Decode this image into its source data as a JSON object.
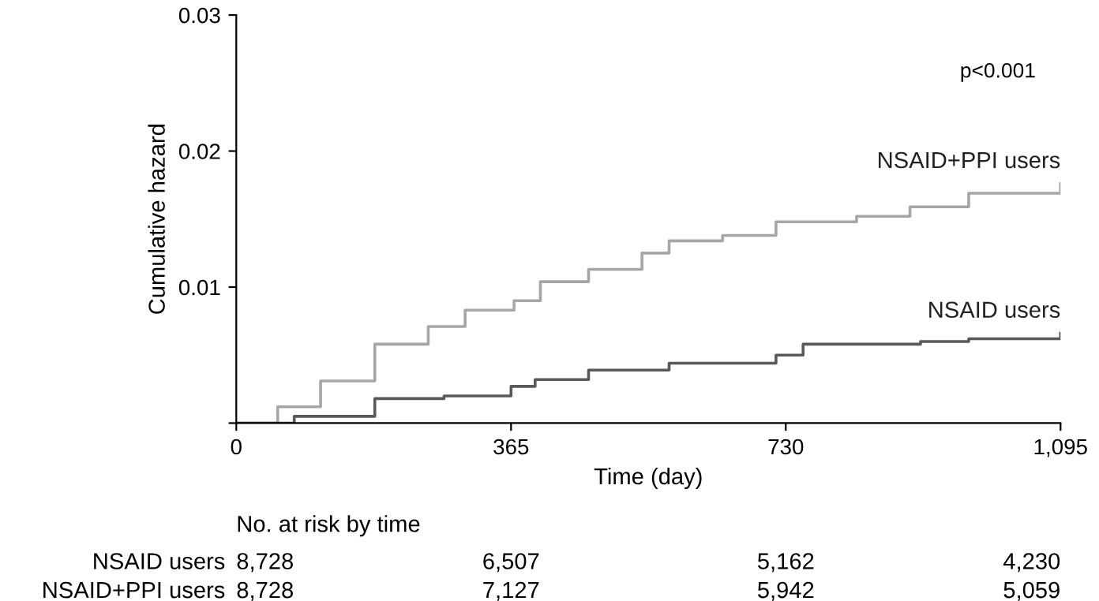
{
  "chart_data": {
    "type": "step",
    "xlabel": "Time (day)",
    "ylabel": "Cumulative hazard",
    "xlim": [
      0,
      1095
    ],
    "xticks": [
      0,
      365,
      730,
      {
        "value": 1095,
        "label": "1,095"
      }
    ],
    "ylim": [
      0,
      0.03
    ],
    "yticks": [
      {
        "value": 0,
        "label": null
      },
      0.01,
      0.02,
      0.03
    ],
    "grid": false,
    "legend": false,
    "marker": "none",
    "line_style": "solid",
    "series": [
      {
        "name": "NSAID+PPI users",
        "color": "#a6a6a6",
        "x": [
          0,
          55,
          112,
          184,
          255,
          304,
          369,
          404,
          468,
          539,
          575,
          646,
          717,
          824,
          895,
          973,
          1095
        ],
        "values": [
          0,
          0.0012,
          0.0031,
          0.0058,
          0.0071,
          0.0083,
          0.009,
          0.0104,
          0.0113,
          0.0125,
          0.0134,
          0.0138,
          0.0148,
          0.0152,
          0.0159,
          0.0169,
          0.0176
        ]
      },
      {
        "name": "NSAID users",
        "color": "#595959",
        "x": [
          0,
          77,
          184,
          276,
          365,
          397,
          468,
          575,
          717,
          753,
          909,
          973,
          1095
        ],
        "values": [
          0,
          0.0005,
          0.0018,
          0.002,
          0.0027,
          0.0032,
          0.0039,
          0.0044,
          0.005,
          0.0058,
          0.006,
          0.0062,
          0.0066
        ]
      }
    ],
    "annotations": [
      "p<0.001",
      "No. at risk by time",
      "NSAID users",
      "8,728",
      "6,507",
      "5,162",
      "4,230",
      "NSAID+PPI users",
      "8,728",
      "7,127",
      "5,942",
      "5,059"
    ]
  }
}
